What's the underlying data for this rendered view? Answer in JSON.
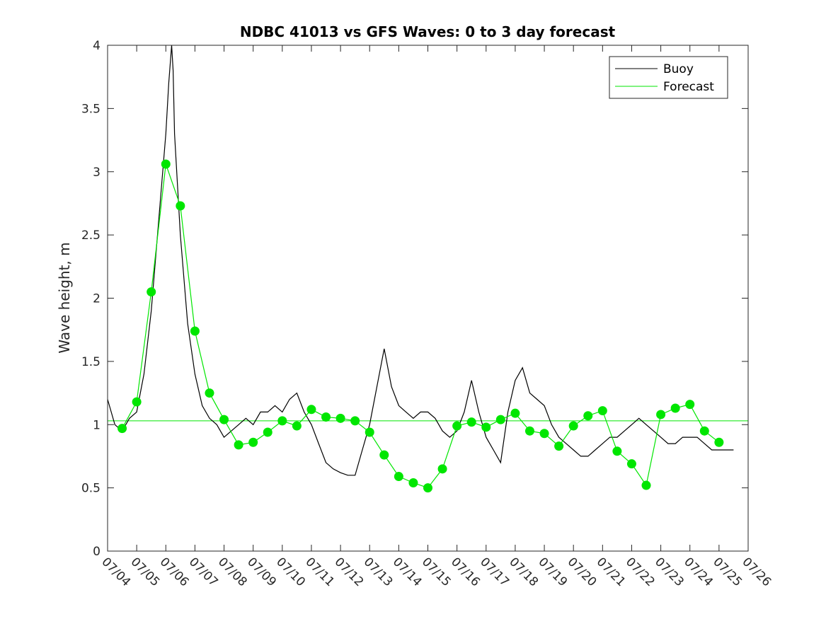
{
  "chart_data": {
    "type": "line",
    "title": "NDBC 41013 vs GFS Waves: 0 to 3 day forecast",
    "ylabel": "Wave height, m",
    "xlabel": "",
    "xlim": [
      "07/04",
      "07/26"
    ],
    "ylim": [
      0,
      4
    ],
    "y_ticks": [
      0,
      0.5,
      1,
      1.5,
      2,
      2.5,
      3,
      3.5,
      4
    ],
    "x_tick_labels": [
      "07/04",
      "07/05",
      "07/06",
      "07/07",
      "07/08",
      "07/09",
      "07/10",
      "07/11",
      "07/12",
      "07/13",
      "07/14",
      "07/15",
      "07/16",
      "07/17",
      "07/18",
      "07/19",
      "07/20",
      "07/21",
      "07/22",
      "07/23",
      "07/24",
      "07/25",
      "07/26"
    ],
    "legend": {
      "location": "top-right",
      "entries": [
        "Buoy",
        "Forecast"
      ]
    },
    "colors": {
      "buoy": "#000000",
      "forecast": "#00e600",
      "axes": "#262626"
    },
    "reference_line": {
      "y": 1.03,
      "name": "Forecast"
    },
    "series": [
      {
        "name": "Buoy",
        "x": [
          0,
          0.25,
          0.5,
          0.75,
          1,
          1.25,
          1.5,
          1.75,
          2,
          2.1,
          2.2,
          2.25,
          2.3,
          2.5,
          2.75,
          3,
          3.25,
          3.5,
          3.75,
          4,
          4.25,
          4.5,
          4.75,
          5,
          5.25,
          5.5,
          5.75,
          6,
          6.25,
          6.5,
          6.75,
          7,
          7.25,
          7.5,
          7.75,
          8,
          8.25,
          8.5,
          8.75,
          9,
          9.25,
          9.5,
          9.75,
          10,
          10.25,
          10.5,
          10.75,
          11,
          11.25,
          11.5,
          11.75,
          12,
          12.25,
          12.5,
          12.75,
          13,
          13.25,
          13.5,
          13.75,
          14,
          14.25,
          14.5,
          14.75,
          15,
          15.25,
          15.5,
          15.75,
          16,
          16.25,
          16.5,
          16.75,
          17,
          17.25,
          17.5,
          17.75,
          18,
          18.25,
          18.5,
          18.75,
          19,
          19.25,
          19.5,
          19.75,
          20,
          20.25,
          20.5,
          20.75,
          21,
          21.25,
          21.5
        ],
        "values": [
          1.2,
          1.0,
          0.95,
          1.05,
          1.1,
          1.4,
          1.9,
          2.6,
          3.3,
          3.7,
          4.0,
          3.8,
          3.3,
          2.5,
          1.8,
          1.4,
          1.15,
          1.05,
          1.0,
          0.9,
          0.95,
          1.0,
          1.05,
          1.0,
          1.1,
          1.1,
          1.15,
          1.1,
          1.2,
          1.25,
          1.1,
          1.0,
          0.85,
          0.7,
          0.65,
          0.62,
          0.6,
          0.6,
          0.8,
          1.0,
          1.3,
          1.6,
          1.3,
          1.15,
          1.1,
          1.05,
          1.1,
          1.1,
          1.05,
          0.95,
          0.9,
          0.95,
          1.1,
          1.35,
          1.1,
          0.9,
          0.8,
          0.7,
          1.1,
          1.35,
          1.45,
          1.25,
          1.2,
          1.15,
          1.0,
          0.9,
          0.85,
          0.8,
          0.75,
          0.75,
          0.8,
          0.85,
          0.9,
          0.9,
          0.95,
          1.0,
          1.05,
          1.0,
          0.95,
          0.9,
          0.85,
          0.85,
          0.9,
          0.9,
          0.9,
          0.85,
          0.8,
          0.8,
          0.8,
          0.8
        ]
      },
      {
        "name": "Forecast",
        "x": [
          0.5,
          1,
          1.5,
          2,
          2.5,
          3,
          3.5,
          4,
          4.5,
          5,
          5.5,
          6,
          6.5,
          7,
          7.5,
          8,
          8.5,
          9,
          9.5,
          10,
          10.5,
          11,
          11.5,
          12,
          12.5,
          13,
          13.5,
          14,
          14.5,
          15,
          15.5,
          16,
          16.5,
          17,
          17.5,
          18,
          18.5,
          19,
          19.5,
          20,
          20.5,
          21
        ],
        "values": [
          0.97,
          1.18,
          2.05,
          3.06,
          2.73,
          1.74,
          1.25,
          1.04,
          0.84,
          0.86,
          0.94,
          1.03,
          0.99,
          1.12,
          1.06,
          1.05,
          1.03,
          0.94,
          0.76,
          0.59,
          0.54,
          0.5,
          0.65,
          0.99,
          1.02,
          0.98,
          1.04,
          1.09,
          0.95,
          0.93,
          0.83,
          0.99,
          1.07,
          1.11,
          0.79,
          0.69,
          0.52,
          1.08,
          1.13,
          1.16,
          0.95,
          0.86
        ]
      }
    ]
  }
}
